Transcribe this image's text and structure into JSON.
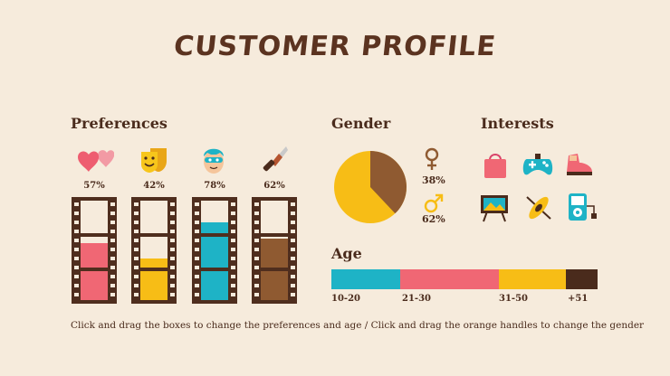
{
  "title": "CUSTOMER PROFILE",
  "preferences": {
    "heading": "Preferences",
    "items": [
      {
        "icon": "hearts-icon",
        "percent_label": "57%",
        "value": 57,
        "color": "#f06774"
      },
      {
        "icon": "theater-masks-icon",
        "percent_label": "42%",
        "value": 42,
        "color": "#f7bd16"
      },
      {
        "icon": "hero-mask-icon",
        "percent_label": "78%",
        "value": 78,
        "color": "#1eb3c6"
      },
      {
        "icon": "knife-icon",
        "percent_label": "62%",
        "value": 62,
        "color": "#8f5a31"
      }
    ]
  },
  "gender": {
    "heading": "Gender",
    "female_label": "38%",
    "male_label": "62%",
    "female_value": 38,
    "male_value": 62,
    "female_color": "#8f5a31",
    "male_color": "#f7bd16"
  },
  "interests": {
    "heading": "Interests",
    "icons": [
      "shopping-bag-icon",
      "gamepad-icon",
      "sneaker-icon",
      "painting-easel-icon",
      "kayak-icon",
      "music-player-icon"
    ]
  },
  "age": {
    "heading": "Age",
    "segments": [
      {
        "label": "10-20",
        "color": "#1eb3c6",
        "share": 26
      },
      {
        "label": "21-30",
        "color": "#f06774",
        "share": 37
      },
      {
        "label": "31-50",
        "color": "#f7bd16",
        "share": 25
      },
      {
        "label": "+51",
        "color": "#4a2b1c",
        "share": 12
      }
    ]
  },
  "footer": "Click and drag the boxes to change the preferences and age / Click and drag the orange handles to change the gender"
}
